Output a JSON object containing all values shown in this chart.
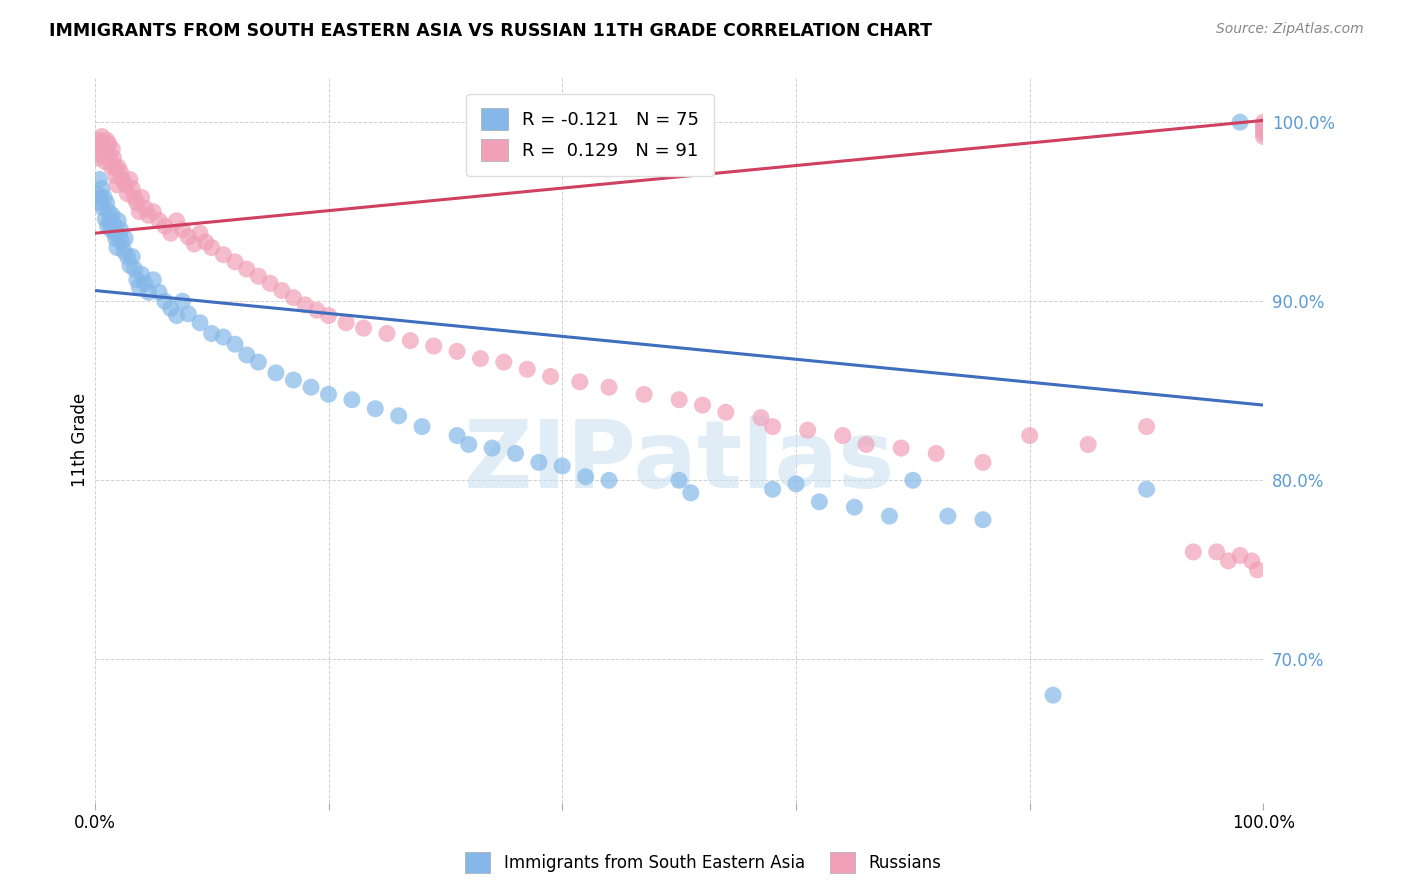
{
  "title": "IMMIGRANTS FROM SOUTH EASTERN ASIA VS RUSSIAN 11TH GRADE CORRELATION CHART",
  "source": "Source: ZipAtlas.com",
  "ylabel": "11th Grade",
  "legend_blue_r": "-0.121",
  "legend_blue_n": "75",
  "legend_pink_r": "0.129",
  "legend_pink_n": "91",
  "legend_blue_label": "Immigrants from South Eastern Asia",
  "legend_pink_label": "Russians",
  "blue_color": "#85B8E8",
  "pink_color": "#F0A0B8",
  "blue_line_color": "#3E6EBD",
  "pink_line_color": "#D04060",
  "ytick_color": "#5B9BD5",
  "watermark_color": "#C8DFF0",
  "xlim": [
    0.0,
    1.0
  ],
  "ylim": [
    0.62,
    1.025
  ],
  "blue_line_x0": 0.0,
  "blue_line_y0": 0.906,
  "blue_line_x1": 1.0,
  "blue_line_y1": 0.842,
  "pink_line_x0": 0.0,
  "pink_line_y0": 0.938,
  "pink_line_x1": 1.0,
  "pink_line_y1": 1.001,
  "blue_x": [
    0.002,
    0.003,
    0.004,
    0.005,
    0.006,
    0.007,
    0.008,
    0.009,
    0.01,
    0.011,
    0.012,
    0.013,
    0.014,
    0.015,
    0.016,
    0.017,
    0.018,
    0.019,
    0.02,
    0.021,
    0.022,
    0.023,
    0.025,
    0.026,
    0.028,
    0.03,
    0.032,
    0.034,
    0.036,
    0.038,
    0.04,
    0.043,
    0.046,
    0.05,
    0.055,
    0.06,
    0.065,
    0.07,
    0.075,
    0.08,
    0.09,
    0.1,
    0.11,
    0.12,
    0.13,
    0.14,
    0.155,
    0.17,
    0.185,
    0.2,
    0.22,
    0.24,
    0.26,
    0.28,
    0.31,
    0.32,
    0.34,
    0.36,
    0.38,
    0.4,
    0.42,
    0.44,
    0.5,
    0.51,
    0.58,
    0.6,
    0.62,
    0.65,
    0.68,
    0.7,
    0.73,
    0.76,
    0.82,
    0.9,
    0.98
  ],
  "blue_y": [
    0.96,
    0.955,
    0.968,
    0.958,
    0.963,
    0.952,
    0.958,
    0.946,
    0.955,
    0.942,
    0.95,
    0.945,
    0.94,
    0.948,
    0.943,
    0.938,
    0.935,
    0.93,
    0.945,
    0.937,
    0.94,
    0.933,
    0.928,
    0.935,
    0.925,
    0.92,
    0.925,
    0.918,
    0.912,
    0.908,
    0.915,
    0.91,
    0.905,
    0.912,
    0.905,
    0.9,
    0.896,
    0.892,
    0.9,
    0.893,
    0.888,
    0.882,
    0.88,
    0.876,
    0.87,
    0.866,
    0.86,
    0.856,
    0.852,
    0.848,
    0.845,
    0.84,
    0.836,
    0.83,
    0.825,
    0.82,
    0.818,
    0.815,
    0.81,
    0.808,
    0.802,
    0.8,
    0.8,
    0.793,
    0.795,
    0.798,
    0.788,
    0.785,
    0.78,
    0.8,
    0.78,
    0.778,
    0.68,
    0.795,
    1.0
  ],
  "pink_x": [
    0.001,
    0.002,
    0.003,
    0.004,
    0.005,
    0.006,
    0.007,
    0.008,
    0.009,
    0.01,
    0.011,
    0.012,
    0.013,
    0.014,
    0.015,
    0.016,
    0.017,
    0.018,
    0.019,
    0.02,
    0.022,
    0.024,
    0.026,
    0.028,
    0.03,
    0.032,
    0.034,
    0.036,
    0.038,
    0.04,
    0.043,
    0.046,
    0.05,
    0.055,
    0.06,
    0.065,
    0.07,
    0.075,
    0.08,
    0.085,
    0.09,
    0.095,
    0.1,
    0.11,
    0.12,
    0.13,
    0.14,
    0.15,
    0.16,
    0.17,
    0.18,
    0.19,
    0.2,
    0.215,
    0.23,
    0.25,
    0.27,
    0.29,
    0.31,
    0.33,
    0.35,
    0.37,
    0.39,
    0.415,
    0.44,
    0.47,
    0.5,
    0.52,
    0.54,
    0.57,
    0.58,
    0.61,
    0.64,
    0.66,
    0.69,
    0.72,
    0.76,
    0.8,
    0.85,
    0.9,
    0.94,
    0.96,
    0.97,
    0.98,
    0.99,
    0.995,
    1.0,
    1.0,
    1.0,
    1.0,
    1.0
  ],
  "pink_y": [
    0.988,
    0.98,
    0.99,
    0.985,
    0.982,
    0.992,
    0.988,
    0.984,
    0.978,
    0.99,
    0.985,
    0.988,
    0.98,
    0.975,
    0.985,
    0.98,
    0.975,
    0.97,
    0.965,
    0.975,
    0.972,
    0.968,
    0.965,
    0.96,
    0.968,
    0.963,
    0.958,
    0.955,
    0.95,
    0.958,
    0.952,
    0.948,
    0.95,
    0.945,
    0.942,
    0.938,
    0.945,
    0.94,
    0.936,
    0.932,
    0.938,
    0.933,
    0.93,
    0.926,
    0.922,
    0.918,
    0.914,
    0.91,
    0.906,
    0.902,
    0.898,
    0.895,
    0.892,
    0.888,
    0.885,
    0.882,
    0.878,
    0.875,
    0.872,
    0.868,
    0.866,
    0.862,
    0.858,
    0.855,
    0.852,
    0.848,
    0.845,
    0.842,
    0.838,
    0.835,
    0.83,
    0.828,
    0.825,
    0.82,
    0.818,
    0.815,
    0.81,
    0.825,
    0.82,
    0.83,
    0.76,
    0.76,
    0.755,
    0.758,
    0.755,
    0.75,
    1.0,
    0.998,
    0.996,
    0.994,
    0.992
  ]
}
